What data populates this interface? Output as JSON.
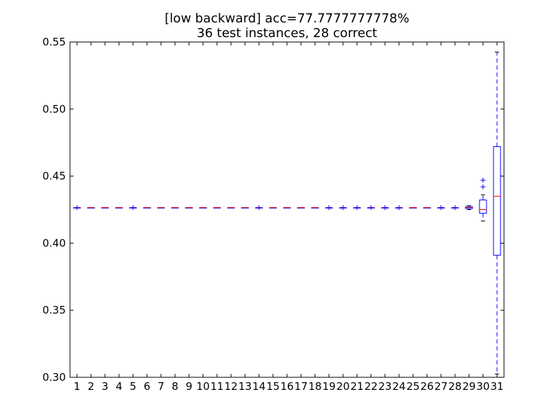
{
  "chart_data": {
    "type": "boxplot",
    "title_line1": "[low backward] acc=77.7777777778%",
    "title_line2": "36 test instances, 28 correct",
    "xlabel": "",
    "ylabel": "",
    "ylim": [
      0.3,
      0.55
    ],
    "yticks": [
      "0.30",
      "0.35",
      "0.40",
      "0.45",
      "0.50",
      "0.55"
    ],
    "categories": [
      "1",
      "2",
      "3",
      "4",
      "5",
      "6",
      "7",
      "8",
      "9",
      "10",
      "11",
      "12",
      "13",
      "14",
      "15",
      "16",
      "17",
      "18",
      "19",
      "20",
      "21",
      "22",
      "23",
      "24",
      "25",
      "26",
      "27",
      "28",
      "29",
      "30",
      "31"
    ],
    "boxes": [
      {
        "q1": 0.4265,
        "median": 0.4265,
        "q3": 0.4265,
        "whislo": 0.4265,
        "whishi": 0.4265,
        "fliers": [
          0.4265
        ]
      },
      {
        "q1": 0.4265,
        "median": 0.4265,
        "q3": 0.4265,
        "whislo": 0.4265,
        "whishi": 0.4265,
        "fliers": []
      },
      {
        "q1": 0.4265,
        "median": 0.4265,
        "q3": 0.4265,
        "whislo": 0.4265,
        "whishi": 0.4265,
        "fliers": []
      },
      {
        "q1": 0.4265,
        "median": 0.4265,
        "q3": 0.4265,
        "whislo": 0.4265,
        "whishi": 0.4265,
        "fliers": []
      },
      {
        "q1": 0.4265,
        "median": 0.4265,
        "q3": 0.4265,
        "whislo": 0.4265,
        "whishi": 0.4265,
        "fliers": [
          0.4265
        ]
      },
      {
        "q1": 0.4265,
        "median": 0.4265,
        "q3": 0.4265,
        "whislo": 0.4265,
        "whishi": 0.4265,
        "fliers": []
      },
      {
        "q1": 0.4265,
        "median": 0.4265,
        "q3": 0.4265,
        "whislo": 0.4265,
        "whishi": 0.4265,
        "fliers": []
      },
      {
        "q1": 0.4265,
        "median": 0.4265,
        "q3": 0.4265,
        "whislo": 0.4265,
        "whishi": 0.4265,
        "fliers": []
      },
      {
        "q1": 0.4265,
        "median": 0.4265,
        "q3": 0.4265,
        "whislo": 0.4265,
        "whishi": 0.4265,
        "fliers": []
      },
      {
        "q1": 0.4265,
        "median": 0.4265,
        "q3": 0.4265,
        "whislo": 0.4265,
        "whishi": 0.4265,
        "fliers": []
      },
      {
        "q1": 0.4265,
        "median": 0.4265,
        "q3": 0.4265,
        "whislo": 0.4265,
        "whishi": 0.4265,
        "fliers": []
      },
      {
        "q1": 0.4265,
        "median": 0.4265,
        "q3": 0.4265,
        "whislo": 0.4265,
        "whishi": 0.4265,
        "fliers": []
      },
      {
        "q1": 0.4265,
        "median": 0.4265,
        "q3": 0.4265,
        "whislo": 0.4265,
        "whishi": 0.4265,
        "fliers": []
      },
      {
        "q1": 0.4265,
        "median": 0.4265,
        "q3": 0.4265,
        "whislo": 0.4265,
        "whishi": 0.4265,
        "fliers": [
          0.4265
        ]
      },
      {
        "q1": 0.4265,
        "median": 0.4265,
        "q3": 0.4265,
        "whislo": 0.4265,
        "whishi": 0.4265,
        "fliers": []
      },
      {
        "q1": 0.4265,
        "median": 0.4265,
        "q3": 0.4265,
        "whislo": 0.4265,
        "whishi": 0.4265,
        "fliers": []
      },
      {
        "q1": 0.4265,
        "median": 0.4265,
        "q3": 0.4265,
        "whislo": 0.4265,
        "whishi": 0.4265,
        "fliers": []
      },
      {
        "q1": 0.4265,
        "median": 0.4265,
        "q3": 0.4265,
        "whislo": 0.4265,
        "whishi": 0.4265,
        "fliers": []
      },
      {
        "q1": 0.4265,
        "median": 0.4265,
        "q3": 0.4265,
        "whislo": 0.4265,
        "whishi": 0.4265,
        "fliers": [
          0.4265
        ]
      },
      {
        "q1": 0.4265,
        "median": 0.4265,
        "q3": 0.4265,
        "whislo": 0.4265,
        "whishi": 0.4265,
        "fliers": [
          0.4265
        ]
      },
      {
        "q1": 0.4265,
        "median": 0.4265,
        "q3": 0.4265,
        "whislo": 0.4265,
        "whishi": 0.4265,
        "fliers": [
          0.4265
        ]
      },
      {
        "q1": 0.4265,
        "median": 0.4265,
        "q3": 0.4265,
        "whislo": 0.4265,
        "whishi": 0.4265,
        "fliers": [
          0.4265
        ]
      },
      {
        "q1": 0.4265,
        "median": 0.4265,
        "q3": 0.4265,
        "whislo": 0.4265,
        "whishi": 0.4265,
        "fliers": [
          0.4265
        ]
      },
      {
        "q1": 0.4265,
        "median": 0.4265,
        "q3": 0.4265,
        "whislo": 0.4265,
        "whishi": 0.4265,
        "fliers": [
          0.4265
        ]
      },
      {
        "q1": 0.4265,
        "median": 0.4265,
        "q3": 0.4265,
        "whislo": 0.4265,
        "whishi": 0.4265,
        "fliers": []
      },
      {
        "q1": 0.4265,
        "median": 0.4265,
        "q3": 0.4265,
        "whislo": 0.4265,
        "whishi": 0.4265,
        "fliers": []
      },
      {
        "q1": 0.4265,
        "median": 0.4265,
        "q3": 0.4265,
        "whislo": 0.4265,
        "whishi": 0.4265,
        "fliers": [
          0.4265
        ]
      },
      {
        "q1": 0.4265,
        "median": 0.4265,
        "q3": 0.4265,
        "whislo": 0.4265,
        "whishi": 0.4265,
        "fliers": [
          0.4265
        ]
      },
      {
        "q1": 0.4258,
        "median": 0.4265,
        "q3": 0.4272,
        "whislo": 0.425,
        "whishi": 0.428,
        "fliers": []
      },
      {
        "q1": 0.4223,
        "median": 0.425,
        "q3": 0.4322,
        "whislo": 0.4165,
        "whishi": 0.436,
        "fliers": [
          0.442,
          0.447
        ]
      },
      {
        "q1": 0.391,
        "median": 0.435,
        "q3": 0.472,
        "whislo": 0.3025,
        "whishi": 0.5425,
        "fliers": []
      }
    ],
    "grid": false,
    "colors": {
      "box": "#0000ff",
      "median": "#ff0000",
      "flier": "#0000ff",
      "axes": "#000000"
    }
  }
}
